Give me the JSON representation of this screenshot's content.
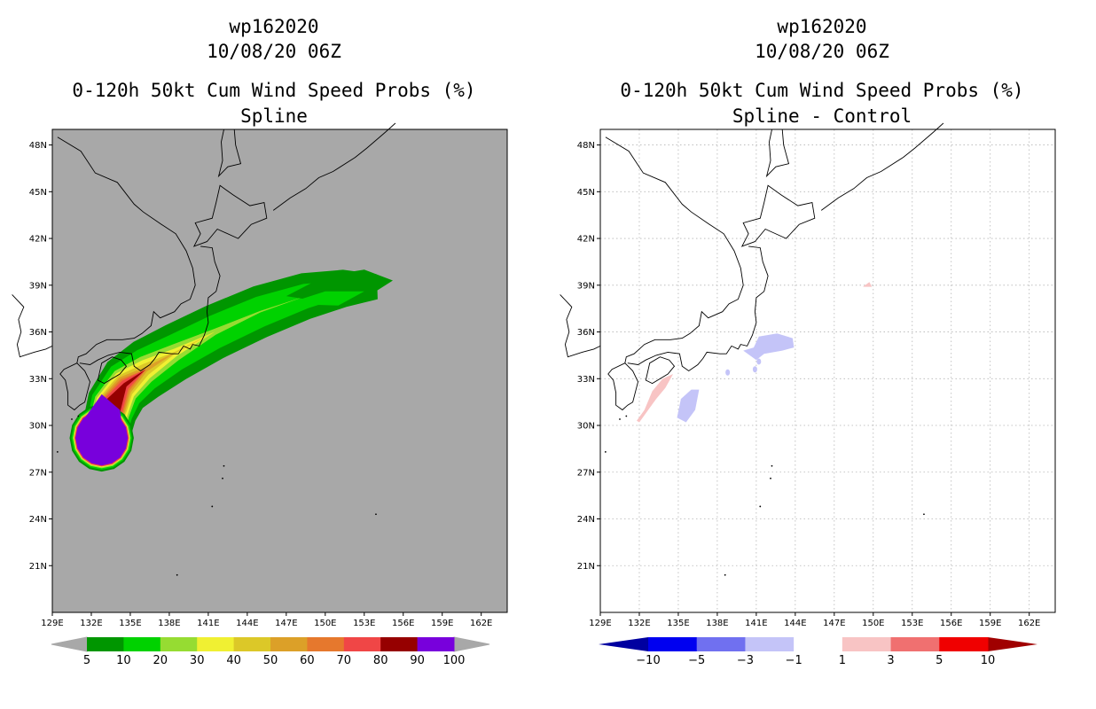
{
  "left": {
    "storm_id": "wp162020",
    "datetime": "10/08/20 06Z",
    "title": "0-120h 50kt Cum Wind Speed Probs (%)",
    "subtitle": "Spline",
    "background_color": "#a8a8a8",
    "colorbar": {
      "colors": [
        "#009600",
        "#00d200",
        "#96dc32",
        "#f0f032",
        "#dcc828",
        "#dca028",
        "#e6782d",
        "#f04646",
        "#960000",
        "#7800dc"
      ],
      "labels": [
        "5",
        "10",
        "20",
        "30",
        "40",
        "50",
        "60",
        "70",
        "80",
        "90",
        "100"
      ]
    },
    "prob_bands": [
      {
        "min": 5,
        "color": "#009600"
      },
      {
        "min": 10,
        "color": "#00d200"
      },
      {
        "min": 20,
        "color": "#96dc32"
      },
      {
        "min": 30,
        "color": "#f0f032"
      },
      {
        "min": 40,
        "color": "#dcc828"
      },
      {
        "min": 50,
        "color": "#dca028"
      },
      {
        "min": 60,
        "color": "#e6782d"
      },
      {
        "min": 70,
        "color": "#f04646"
      },
      {
        "min": 80,
        "color": "#960000"
      },
      {
        "min": 90,
        "color": "#7800dc"
      }
    ]
  },
  "right": {
    "storm_id": "wp162020",
    "datetime": "10/08/20 06Z",
    "title": "0-120h 50kt Cum Wind Speed Probs (%)",
    "subtitle": "Spline - Control",
    "background_color": "#ffffff",
    "colorbar": {
      "colors": [
        "#0000a0",
        "#0000f0",
        "#7070f0",
        "#c4c4f8",
        "#ffffff",
        "#f8c4c4",
        "#f07070",
        "#f00000",
        "#a00000"
      ],
      "labels": [
        "-10",
        "-5",
        "-3",
        "-1",
        "1",
        "3",
        "5",
        "10"
      ]
    },
    "diff_regions": [
      {
        "sign": "positive",
        "lon": 133.2,
        "lat": 31.8,
        "color": "#f8c4c4"
      },
      {
        "sign": "negative",
        "lon": 135.5,
        "lat": 31.2,
        "color": "#c4c4f8"
      },
      {
        "sign": "negative",
        "lon": 142.5,
        "lat": 35.0,
        "color": "#c4c4f8"
      },
      {
        "sign": "positive",
        "lon": 149.6,
        "lat": 39.0,
        "color": "#f8c4c4"
      }
    ]
  },
  "map": {
    "lon_range": [
      129,
      164
    ],
    "lat_range": [
      18,
      49
    ],
    "lon_labels": [
      "129E",
      "132E",
      "135E",
      "138E",
      "141E",
      "144E",
      "147E",
      "150E",
      "153E",
      "156E",
      "159E",
      "162E"
    ],
    "lat_labels": [
      "21N",
      "24N",
      "27N",
      "30N",
      "33N",
      "36N",
      "39N",
      "42N",
      "45N",
      "48N"
    ]
  }
}
